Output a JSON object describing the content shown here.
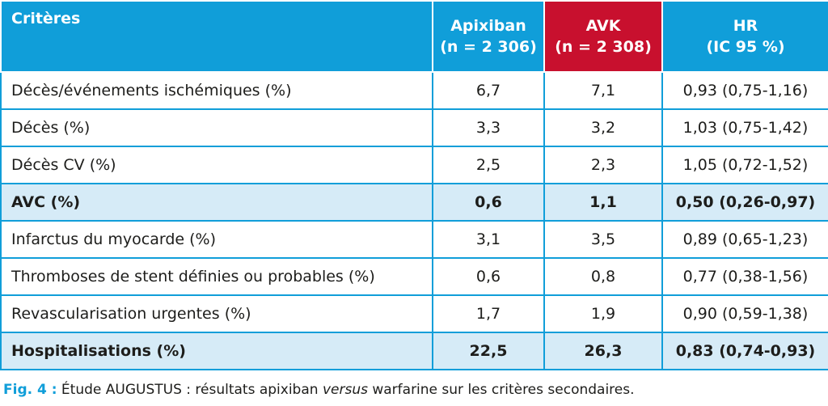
{
  "table": {
    "header": {
      "criteria": "Critères",
      "apixiban": [
        "Apixiban",
        "(n = 2 306)"
      ],
      "avk": [
        "AVK",
        "(n = 2 308)"
      ],
      "hr": [
        "HR",
        "(IC 95 %)"
      ]
    },
    "rows": [
      {
        "label": "Décès/événements ischémiques (%)",
        "apixiban": "6,7",
        "avk": "7,1",
        "hr": "0,93 (0,75-1,16)",
        "highlight": false
      },
      {
        "label": "Décès (%)",
        "apixiban": "3,3",
        "avk": "3,2",
        "hr": "1,03 (0,75-1,42)",
        "highlight": false
      },
      {
        "label": "Décès CV (%)",
        "apixiban": "2,5",
        "avk": "2,3",
        "hr": "1,05 (0,72-1,52)",
        "highlight": false
      },
      {
        "label": "AVC (%)",
        "apixiban": "0,6",
        "avk": "1,1",
        "hr": "0,50 (0,26-0,97)",
        "highlight": true
      },
      {
        "label": "Infarctus du myocarde (%)",
        "apixiban": "3,1",
        "avk": "3,5",
        "hr": "0,89 (0,65-1,23)",
        "highlight": false
      },
      {
        "label": "Thromboses de stent définies ou probables (%)",
        "apixiban": "0,6",
        "avk": "0,8",
        "hr": "0,77 (0,38-1,56)",
        "highlight": false
      },
      {
        "label": "Revascularisation urgentes (%)",
        "apixiban": "1,7",
        "avk": "1,9",
        "hr": "0,90 (0,59-1,38)",
        "highlight": false
      },
      {
        "label": "Hospitalisations (%)",
        "apixiban": "22,5",
        "avk": "26,3",
        "hr": "0,83 (0,74-0,93)",
        "highlight": true
      }
    ]
  },
  "caption": {
    "label": "Fig. 4 :",
    "text_before": " Étude AUGUSTUS : résultats apixiban ",
    "italic": "versus",
    "text_after": " warfarine sur les critères secondaires."
  },
  "colors": {
    "header_blue": "#109ed9",
    "header_red": "#c8102e",
    "highlight_row": "#d6ebf7",
    "border": "#109ed9"
  }
}
